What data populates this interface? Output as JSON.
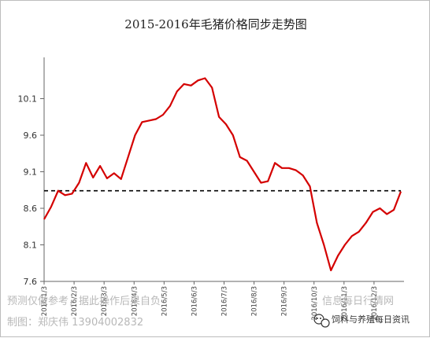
{
  "chart_data": {
    "type": "line",
    "title": "2015-2016年毛猪价格同步走势图",
    "xlabel": "",
    "ylabel": "",
    "ylim": [
      7.6,
      10.6
    ],
    "y_ticks": [
      "7.6",
      "8.1",
      "8.6",
      "9.1",
      "9.6",
      "10.1"
    ],
    "x_ticks": [
      "2016/1/3",
      "2016/2/3",
      "2016/3/3",
      "2016/4/3",
      "2016/5/3",
      "2016/6/3",
      "2016/7/3",
      "2016/8/3",
      "2016/9/3",
      "2016/10/3",
      "2016/11/3",
      "2016/12/3"
    ],
    "grid": false,
    "color": "#d40000",
    "reference_line": {
      "value": 8.84,
      "style": "dashed",
      "color": "#000000"
    },
    "series": [
      {
        "values": [
          8.45,
          8.62,
          8.84,
          8.78,
          8.8,
          8.95,
          9.22,
          9.02,
          9.18,
          9.01,
          9.08,
          9.0,
          9.3,
          9.6,
          9.78,
          9.8,
          9.82,
          9.88,
          10.0,
          10.2,
          10.3,
          10.28,
          10.35,
          10.38,
          10.25,
          9.85,
          9.75,
          9.6,
          9.3,
          9.25,
          9.1,
          8.95,
          8.97,
          9.22,
          9.15,
          9.15,
          9.12,
          9.05,
          8.9,
          8.4,
          8.1,
          7.75,
          7.95,
          8.1,
          8.22,
          8.28,
          8.4,
          8.55,
          8.6,
          8.52,
          8.58,
          8.83
        ]
      }
    ]
  },
  "watermark": {
    "line1": "预测仅做参考，据此操作后果自负",
    "line2": "制图：郑庆伟      13904002832",
    "faint": "信息每日行情网"
  },
  "brand": {
    "text": "饲料与养殖每日资讯"
  }
}
